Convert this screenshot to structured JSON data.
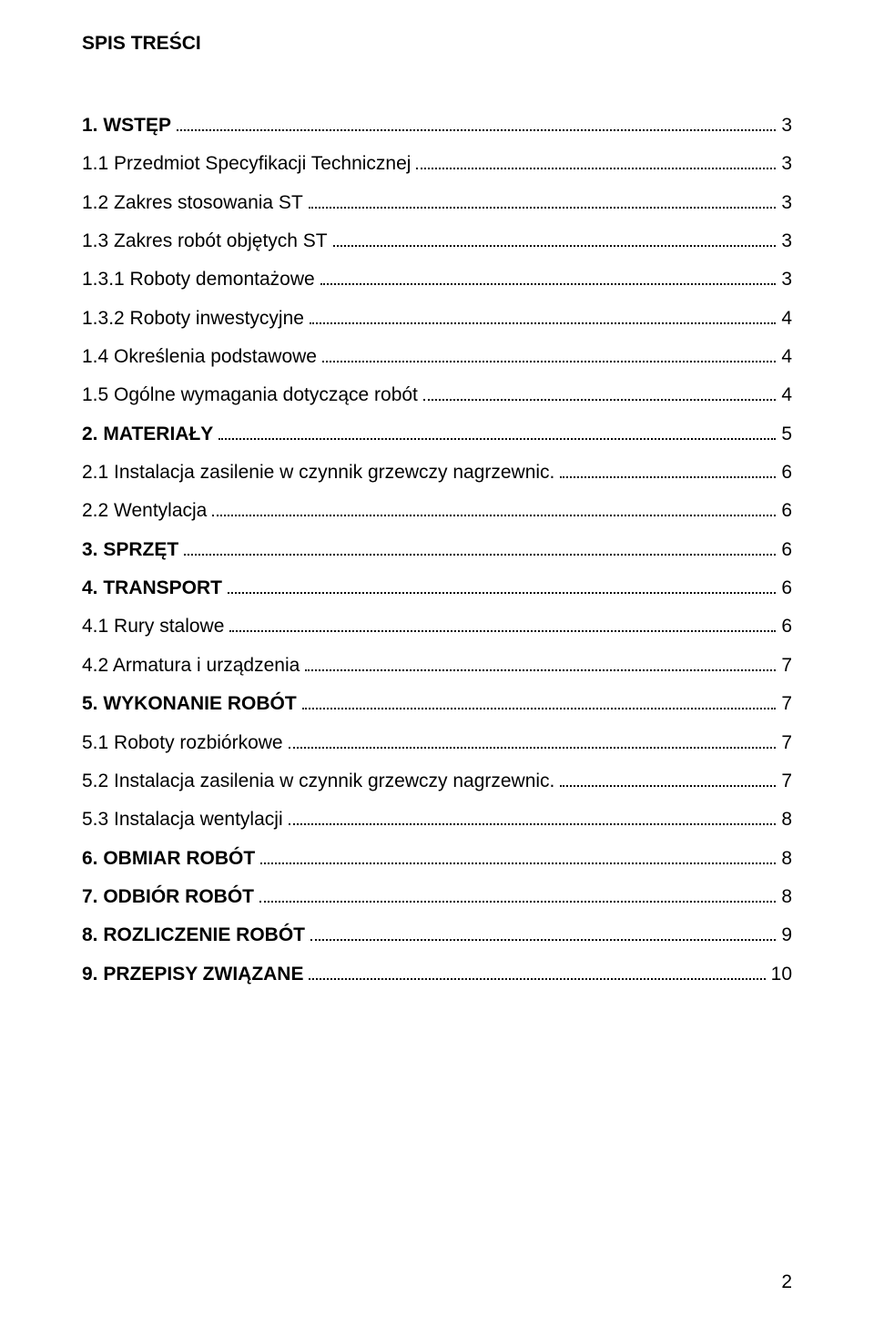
{
  "title": "SPIS TREŚCI",
  "footer_page_number": "2",
  "entries": [
    {
      "label": "1. WSTĘP",
      "page": "3",
      "bold": true,
      "level": 0
    },
    {
      "label": "1.1 Przedmiot Specyfikacji Technicznej",
      "page": "3",
      "bold": false,
      "level": 1
    },
    {
      "label": "1.2 Zakres stosowania ST",
      "page": "3",
      "bold": false,
      "level": 1
    },
    {
      "label": "1.3 Zakres robót objętych ST",
      "page": "3",
      "bold": false,
      "level": 1
    },
    {
      "label": "1.3.1 Roboty demontażowe",
      "page": "3",
      "bold": false,
      "level": 1
    },
    {
      "label": "1.3.2 Roboty inwestycyjne",
      "page": "4",
      "bold": false,
      "level": 1
    },
    {
      "label": "1.4 Określenia podstawowe",
      "page": "4",
      "bold": false,
      "level": 1
    },
    {
      "label": "1.5 Ogólne wymagania dotyczące robót",
      "page": "4",
      "bold": false,
      "level": 1
    },
    {
      "label": "2. MATERIAŁY",
      "page": "5",
      "bold": true,
      "level": 0
    },
    {
      "label": "2.1 Instalacja zasilenie w czynnik grzewczy nagrzewnic.",
      "page": "6",
      "bold": false,
      "level": 1
    },
    {
      "label": "2.2 Wentylacja",
      "page": "6",
      "bold": false,
      "level": 1
    },
    {
      "label": "3. SPRZĘT",
      "page": "6",
      "bold": true,
      "level": 0
    },
    {
      "label": "4. TRANSPORT",
      "page": "6",
      "bold": true,
      "level": 0
    },
    {
      "label": "4.1 Rury stalowe",
      "page": "6",
      "bold": false,
      "level": 1
    },
    {
      "label": "4.2 Armatura i urządzenia",
      "page": "7",
      "bold": false,
      "level": 1
    },
    {
      "label": "5. WYKONANIE ROBÓT",
      "page": "7",
      "bold": true,
      "level": 0
    },
    {
      "label": "5.1 Roboty rozbiórkowe",
      "page": "7",
      "bold": false,
      "level": 1
    },
    {
      "label": "5.2 Instalacja zasilenia w czynnik grzewczy nagrzewnic.",
      "page": "7",
      "bold": false,
      "level": 1
    },
    {
      "label": "5.3 Instalacja wentylacji",
      "page": "8",
      "bold": false,
      "level": 1
    },
    {
      "label": "6. OBMIAR ROBÓT",
      "page": "8",
      "bold": true,
      "level": 0
    },
    {
      "label": "7. ODBIÓR ROBÓT",
      "page": "8",
      "bold": true,
      "level": 0
    },
    {
      "label": "8. ROZLICZENIE ROBÓT",
      "page": "9",
      "bold": true,
      "level": 0
    },
    {
      "label": "9. PRZEPISY ZWIĄZANE",
      "page": "10",
      "bold": true,
      "level": 0
    }
  ]
}
